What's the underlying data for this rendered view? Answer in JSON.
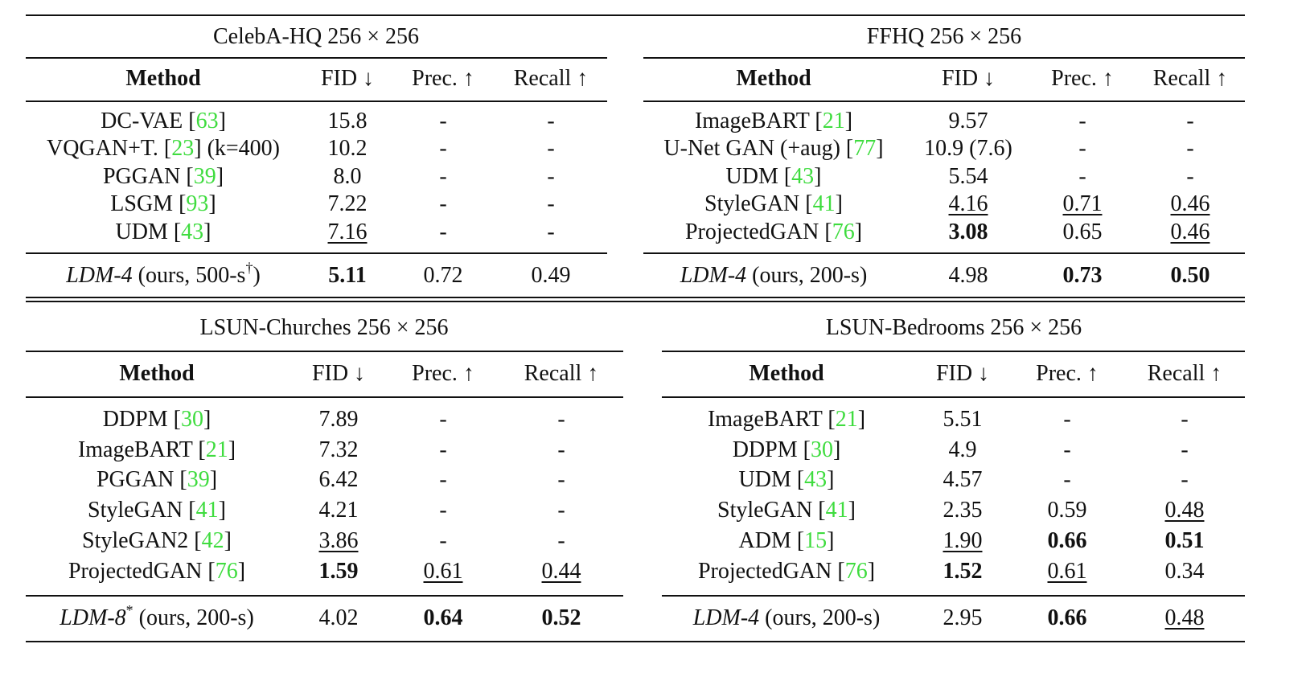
{
  "colors": {
    "reference": "#3fdc3f",
    "text": "#111111"
  },
  "tables": [
    {
      "id": "celeba",
      "title": "CelebA-HQ 256 × 256",
      "headers": [
        "Method",
        "FID ↓",
        "Prec. ↑",
        "Recall ↑"
      ],
      "rows": [
        {
          "name": "DC-VAE ",
          "ref": "63",
          "suffix": "",
          "fid": "15.8",
          "prec": "-",
          "recall": "-"
        },
        {
          "name": "VQGAN+T. ",
          "ref": "23",
          "suffix": " (k=400)",
          "fid": "10.2",
          "prec": "-",
          "recall": "-"
        },
        {
          "name": "PGGAN ",
          "ref": "39",
          "suffix": "",
          "fid": "8.0",
          "prec": "-",
          "recall": "-"
        },
        {
          "name": "LSGM ",
          "ref": "93",
          "suffix": "",
          "fid": "7.22",
          "prec": "-",
          "recall": "-"
        },
        {
          "name": "UDM ",
          "ref": "43",
          "suffix": "",
          "fid": "7.16",
          "prec": "-",
          "recall": "-"
        }
      ],
      "ours": {
        "name": "LDM-4",
        "rest": " (ours, 500-s",
        "sup": "†",
        "close": ")",
        "fid": "5.11",
        "prec": "0.72",
        "recall": "0.49"
      }
    },
    {
      "id": "ffhq",
      "title": "FFHQ 256 × 256",
      "headers": [
        "Method",
        "FID ↓",
        "Prec. ↑",
        "Recall ↑"
      ],
      "rows": [
        {
          "name": "ImageBART ",
          "ref": "21",
          "suffix": "",
          "fid": "9.57",
          "prec": "-",
          "recall": "-"
        },
        {
          "name": "U-Net GAN (+aug) ",
          "ref": "77",
          "suffix": "",
          "fid": "10.9 (7.6)",
          "prec": "-",
          "recall": "-"
        },
        {
          "name": "UDM ",
          "ref": "43",
          "suffix": "",
          "fid": "5.54",
          "prec": "-",
          "recall": "-"
        },
        {
          "name": "StyleGAN ",
          "ref": "41",
          "suffix": "",
          "fid": "4.16",
          "prec": "0.71",
          "recall": "0.46"
        },
        {
          "name": "ProjectedGAN ",
          "ref": "76",
          "suffix": "",
          "fid": "3.08",
          "prec": "0.65",
          "recall": "0.46"
        }
      ],
      "ours": {
        "name": "LDM-4",
        "rest": " (ours, 200-s)",
        "sup": "",
        "close": "",
        "fid": "4.98",
        "prec": "0.73",
        "recall": "0.50"
      }
    },
    {
      "id": "churches",
      "title": "LSUN-Churches 256 × 256",
      "headers": [
        "Method",
        "FID ↓",
        "Prec. ↑",
        "Recall ↑"
      ],
      "rows": [
        {
          "name": "DDPM ",
          "ref": "30",
          "suffix": "",
          "fid": "7.89",
          "prec": "-",
          "recall": "-"
        },
        {
          "name": "ImageBART ",
          "ref": "21",
          "suffix": "",
          "fid": "7.32",
          "prec": "-",
          "recall": "-"
        },
        {
          "name": "PGGAN ",
          "ref": "39",
          "suffix": "",
          "fid": "6.42",
          "prec": "-",
          "recall": "-"
        },
        {
          "name": "StyleGAN ",
          "ref": "41",
          "suffix": "",
          "fid": "4.21",
          "prec": "-",
          "recall": "-"
        },
        {
          "name": "StyleGAN2 ",
          "ref": "42",
          "suffix": "",
          "fid": "3.86",
          "prec": "-",
          "recall": "-"
        },
        {
          "name": "ProjectedGAN ",
          "ref": "76",
          "suffix": "",
          "fid": "1.59",
          "prec": "0.61",
          "recall": "0.44"
        }
      ],
      "ours": {
        "name": "LDM-8",
        "rest": " (ours, 200-s)",
        "sup": "*",
        "close": "",
        "fid": "4.02",
        "prec": "0.64",
        "recall": "0.52"
      }
    },
    {
      "id": "bedrooms",
      "title": "LSUN-Bedrooms 256 × 256",
      "headers": [
        "Method",
        "FID ↓",
        "Prec. ↑",
        "Recall ↑"
      ],
      "rows": [
        {
          "name": "ImageBART ",
          "ref": "21",
          "suffix": "",
          "fid": "5.51",
          "prec": "-",
          "recall": "-"
        },
        {
          "name": "DDPM ",
          "ref": "30",
          "suffix": "",
          "fid": "4.9",
          "prec": "-",
          "recall": "-"
        },
        {
          "name": "UDM ",
          "ref": "43",
          "suffix": "",
          "fid": "4.57",
          "prec": "-",
          "recall": "-"
        },
        {
          "name": "StyleGAN ",
          "ref": "41",
          "suffix": "",
          "fid": "2.35",
          "prec": "0.59",
          "recall": "0.48"
        },
        {
          "name": "ADM ",
          "ref": "15",
          "suffix": "",
          "fid": "1.90",
          "prec": "0.66",
          "recall": "0.51"
        },
        {
          "name": "ProjectedGAN ",
          "ref": "76",
          "suffix": "",
          "fid": "1.52",
          "prec": "0.61",
          "recall": "0.34"
        }
      ],
      "ours": {
        "name": "LDM-4",
        "rest": " (ours, 200-s)",
        "sup": "",
        "close": "",
        "fid": "2.95",
        "prec": "0.66",
        "recall": "0.48"
      }
    }
  ],
  "emphasis": {
    "celeba": {
      "bold": [
        "ours.fid"
      ],
      "underline": [
        "rows.4.fid"
      ]
    },
    "ffhq": {
      "bold": [
        "rows.4.fid",
        "ours.prec",
        "ours.recall"
      ],
      "underline": [
        "rows.3.fid",
        "rows.3.prec",
        "rows.3.recall",
        "rows.4.recall"
      ]
    },
    "churches": {
      "bold": [
        "rows.5.fid",
        "ours.prec",
        "ours.recall"
      ],
      "underline": [
        "rows.4.fid",
        "rows.5.prec",
        "rows.5.recall"
      ]
    },
    "bedrooms": {
      "bold": [
        "rows.5.fid",
        "rows.4.prec",
        "rows.4.recall",
        "ours.prec"
      ],
      "underline": [
        "rows.4.fid",
        "rows.5.prec",
        "rows.3.recall",
        "ours.recall"
      ]
    }
  }
}
